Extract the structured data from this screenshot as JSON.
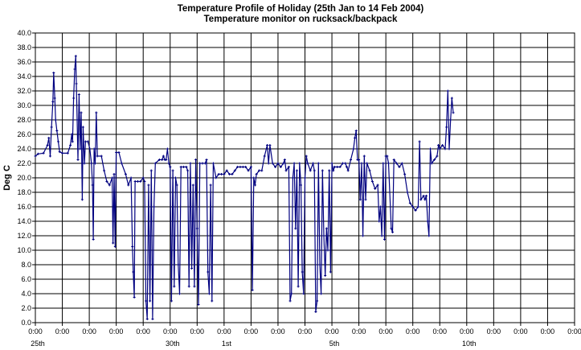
{
  "chart_data": {
    "type": "line",
    "title": "Temperature Profile of Holiday (25th Jan to 14 Feb 2004)",
    "subtitle": "Temperature monitor on rucksack/backpack",
    "ylabel": "Deg C",
    "xlabel": "",
    "ylim": [
      0,
      40
    ],
    "ystep": 2,
    "grid": true,
    "legend": "none",
    "colors": {
      "series": "#000080",
      "grid": "#000000",
      "background": "#ffffff"
    },
    "x_tick_labels": [
      "0:00",
      "0:00",
      "0:00",
      "0:00",
      "0:00",
      "0:00",
      "0:00",
      "0:00",
      "0:00",
      "0:00",
      "0:00",
      "0:00",
      "0:00",
      "0:00",
      "0:00",
      "0:00",
      "0:00",
      "0:00",
      "0:00",
      "0:00",
      "0:00"
    ],
    "date_labels": [
      {
        "label": "25th",
        "day": 0
      },
      {
        "label": "30th",
        "day": 5
      },
      {
        "label": "1st",
        "day": 7
      },
      {
        "label": "5th",
        "day": 11
      },
      {
        "label": "10th",
        "day": 16
      }
    ],
    "x_unit": "days since 0:00 25 Jan 2004",
    "series": [
      {
        "values": [
          [
            0.0,
            23.0
          ],
          [
            0.1,
            23.3
          ],
          [
            0.3,
            23.4
          ],
          [
            0.45,
            24.5
          ],
          [
            0.5,
            25.5
          ],
          [
            0.55,
            23.0
          ],
          [
            0.6,
            27
          ],
          [
            0.65,
            30.5
          ],
          [
            0.68,
            34.5
          ],
          [
            0.72,
            31
          ],
          [
            0.75,
            28
          ],
          [
            0.8,
            26.5
          ],
          [
            0.85,
            25
          ],
          [
            0.9,
            23.6
          ],
          [
            1.0,
            23.4
          ],
          [
            1.2,
            23.4
          ],
          [
            1.3,
            24.5
          ],
          [
            1.35,
            26
          ],
          [
            1.38,
            25
          ],
          [
            1.42,
            31
          ],
          [
            1.46,
            35
          ],
          [
            1.5,
            36.8
          ],
          [
            1.52,
            33
          ],
          [
            1.55,
            28
          ],
          [
            1.58,
            22.5
          ],
          [
            1.62,
            31.5
          ],
          [
            1.66,
            24
          ],
          [
            1.7,
            29
          ],
          [
            1.74,
            17
          ],
          [
            1.77,
            27
          ],
          [
            1.82,
            22
          ],
          [
            1.86,
            25
          ],
          [
            1.95,
            25
          ],
          [
            2.02,
            24
          ],
          [
            2.08,
            22
          ],
          [
            2.12,
            19
          ],
          [
            2.15,
            11.5
          ],
          [
            2.18,
            24
          ],
          [
            2.22,
            22
          ],
          [
            2.26,
            29
          ],
          [
            2.3,
            23
          ],
          [
            2.45,
            23
          ],
          [
            2.55,
            21
          ],
          [
            2.65,
            19.5
          ],
          [
            2.75,
            19
          ],
          [
            2.85,
            20
          ],
          [
            2.88,
            11
          ],
          [
            2.92,
            20.5
          ],
          [
            2.96,
            10.5
          ],
          [
            3.0,
            23.5
          ],
          [
            3.1,
            23.5
          ],
          [
            3.2,
            22
          ],
          [
            3.35,
            20.5
          ],
          [
            3.45,
            19
          ],
          [
            3.55,
            20
          ],
          [
            3.6,
            10.5
          ],
          [
            3.63,
            7
          ],
          [
            3.67,
            3.5
          ],
          [
            3.7,
            19.5
          ],
          [
            3.8,
            19.5
          ],
          [
            3.9,
            19.5
          ],
          [
            4.0,
            20
          ],
          [
            4.05,
            19.5
          ],
          [
            4.1,
            3
          ],
          [
            4.15,
            0.5
          ],
          [
            4.2,
            19
          ],
          [
            4.25,
            3
          ],
          [
            4.3,
            21
          ],
          [
            4.35,
            0.5
          ],
          [
            4.4,
            16
          ],
          [
            4.45,
            22
          ],
          [
            4.6,
            22.5
          ],
          [
            4.7,
            22.5
          ],
          [
            4.75,
            23
          ],
          [
            4.8,
            22.5
          ],
          [
            4.85,
            22.5
          ],
          [
            4.9,
            24
          ],
          [
            4.95,
            22
          ],
          [
            5.0,
            21.5
          ],
          [
            5.05,
            3
          ],
          [
            5.1,
            21
          ],
          [
            5.15,
            5
          ],
          [
            5.2,
            20
          ],
          [
            5.25,
            19
          ],
          [
            5.3,
            8
          ],
          [
            5.35,
            4
          ],
          [
            5.4,
            21.5
          ],
          [
            5.5,
            21.5
          ],
          [
            5.6,
            21.5
          ],
          [
            5.65,
            21
          ],
          [
            5.7,
            5
          ],
          [
            5.75,
            22
          ],
          [
            5.8,
            7.5
          ],
          [
            5.85,
            19
          ],
          [
            5.9,
            5
          ],
          [
            5.95,
            22.5
          ],
          [
            6.0,
            13
          ],
          [
            6.05,
            2.5
          ],
          [
            6.1,
            22
          ],
          [
            6.2,
            22
          ],
          [
            6.3,
            22
          ],
          [
            6.35,
            22.5
          ],
          [
            6.4,
            7
          ],
          [
            6.45,
            4
          ],
          [
            6.5,
            19
          ],
          [
            6.55,
            3
          ],
          [
            6.6,
            22
          ],
          [
            6.7,
            20
          ],
          [
            6.8,
            20.5
          ],
          [
            6.9,
            20.5
          ],
          [
            7.0,
            20.5
          ],
          [
            7.1,
            21
          ],
          [
            7.2,
            20.5
          ],
          [
            7.3,
            20.5
          ],
          [
            7.4,
            21
          ],
          [
            7.5,
            21.5
          ],
          [
            7.6,
            21.5
          ],
          [
            7.7,
            21.5
          ],
          [
            7.8,
            21.5
          ],
          [
            7.9,
            21
          ],
          [
            8.0,
            21.5
          ],
          [
            8.05,
            4.5
          ],
          [
            8.1,
            20
          ],
          [
            8.15,
            19
          ],
          [
            8.2,
            20.5
          ],
          [
            8.3,
            21
          ],
          [
            8.4,
            21
          ],
          [
            8.5,
            23
          ],
          [
            8.6,
            24.5
          ],
          [
            8.65,
            22
          ],
          [
            8.7,
            24.5
          ],
          [
            8.8,
            22
          ],
          [
            8.9,
            21.5
          ],
          [
            9.0,
            22
          ],
          [
            9.1,
            21.5
          ],
          [
            9.2,
            22
          ],
          [
            9.25,
            22.5
          ],
          [
            9.3,
            21
          ],
          [
            9.4,
            21.5
          ],
          [
            9.45,
            3
          ],
          [
            9.5,
            4
          ],
          [
            9.55,
            20
          ],
          [
            9.6,
            22
          ],
          [
            9.65,
            13
          ],
          [
            9.7,
            21
          ],
          [
            9.75,
            5
          ],
          [
            9.8,
            22
          ],
          [
            9.85,
            19
          ],
          [
            9.9,
            7
          ],
          [
            9.95,
            4
          ],
          [
            10.0,
            20
          ],
          [
            10.05,
            23
          ],
          [
            10.1,
            22
          ],
          [
            10.2,
            21
          ],
          [
            10.3,
            22
          ],
          [
            10.35,
            21
          ],
          [
            10.4,
            1.5
          ],
          [
            10.45,
            3
          ],
          [
            10.5,
            22
          ],
          [
            10.55,
            8
          ],
          [
            10.6,
            4
          ],
          [
            10.65,
            21
          ],
          [
            10.7,
            12
          ],
          [
            10.75,
            6.5
          ],
          [
            10.8,
            13
          ],
          [
            10.85,
            10
          ],
          [
            10.9,
            21
          ],
          [
            10.95,
            7
          ],
          [
            11.0,
            22
          ],
          [
            11.05,
            21
          ],
          [
            11.1,
            21.5
          ],
          [
            11.2,
            21.5
          ],
          [
            11.3,
            21.5
          ],
          [
            11.4,
            22
          ],
          [
            11.5,
            22
          ],
          [
            11.55,
            21.5
          ],
          [
            11.6,
            21
          ],
          [
            11.7,
            22.5
          ],
          [
            11.8,
            24
          ],
          [
            11.85,
            25.5
          ],
          [
            11.9,
            26.5
          ],
          [
            11.95,
            22.5
          ],
          [
            12.0,
            22.5
          ],
          [
            12.05,
            17
          ],
          [
            12.1,
            22
          ],
          [
            12.15,
            12
          ],
          [
            12.2,
            23
          ],
          [
            12.25,
            17
          ],
          [
            12.3,
            22
          ],
          [
            12.4,
            21
          ],
          [
            12.5,
            19.5
          ],
          [
            12.6,
            18.5
          ],
          [
            12.7,
            19
          ],
          [
            12.75,
            14
          ],
          [
            12.8,
            16
          ],
          [
            12.85,
            12
          ],
          [
            12.9,
            22
          ],
          [
            12.95,
            11.5
          ],
          [
            13.0,
            23
          ],
          [
            13.05,
            23
          ],
          [
            13.1,
            22
          ],
          [
            13.2,
            13
          ],
          [
            13.25,
            12.5
          ],
          [
            13.3,
            22.5
          ],
          [
            13.4,
            22
          ],
          [
            13.5,
            21.5
          ],
          [
            13.6,
            22
          ],
          [
            13.7,
            20.5
          ],
          [
            13.8,
            18
          ],
          [
            13.9,
            16.5
          ],
          [
            14.0,
            16
          ],
          [
            14.1,
            15.5
          ],
          [
            14.2,
            16
          ],
          [
            14.25,
            25
          ],
          [
            14.3,
            17
          ],
          [
            14.4,
            17.5
          ],
          [
            14.45,
            17
          ],
          [
            14.5,
            17.5
          ],
          [
            14.55,
            14
          ],
          [
            14.6,
            12
          ],
          [
            14.65,
            24
          ],
          [
            14.7,
            22
          ],
          [
            14.8,
            22.5
          ],
          [
            14.9,
            23
          ],
          [
            14.95,
            24.5
          ],
          [
            15.0,
            24
          ],
          [
            15.1,
            24.5
          ],
          [
            15.2,
            24
          ],
          [
            15.25,
            27
          ],
          [
            15.3,
            32
          ],
          [
            15.35,
            24
          ],
          [
            15.4,
            28
          ],
          [
            15.45,
            31
          ],
          [
            15.5,
            29
          ]
        ]
      }
    ]
  }
}
